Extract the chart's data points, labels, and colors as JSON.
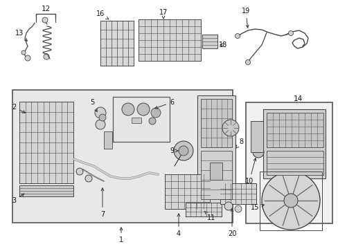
{
  "bg_color": "#ffffff",
  "fig_width": 4.89,
  "fig_height": 3.6,
  "dpi": 100,
  "lc": "#333333",
  "part_gray": "#c8c8c8",
  "dark_gray": "#555555",
  "hatch_bg": "#d8d8d8",
  "box_fill": "#e0e0e0",
  "right_fill": "#f5f5f5"
}
